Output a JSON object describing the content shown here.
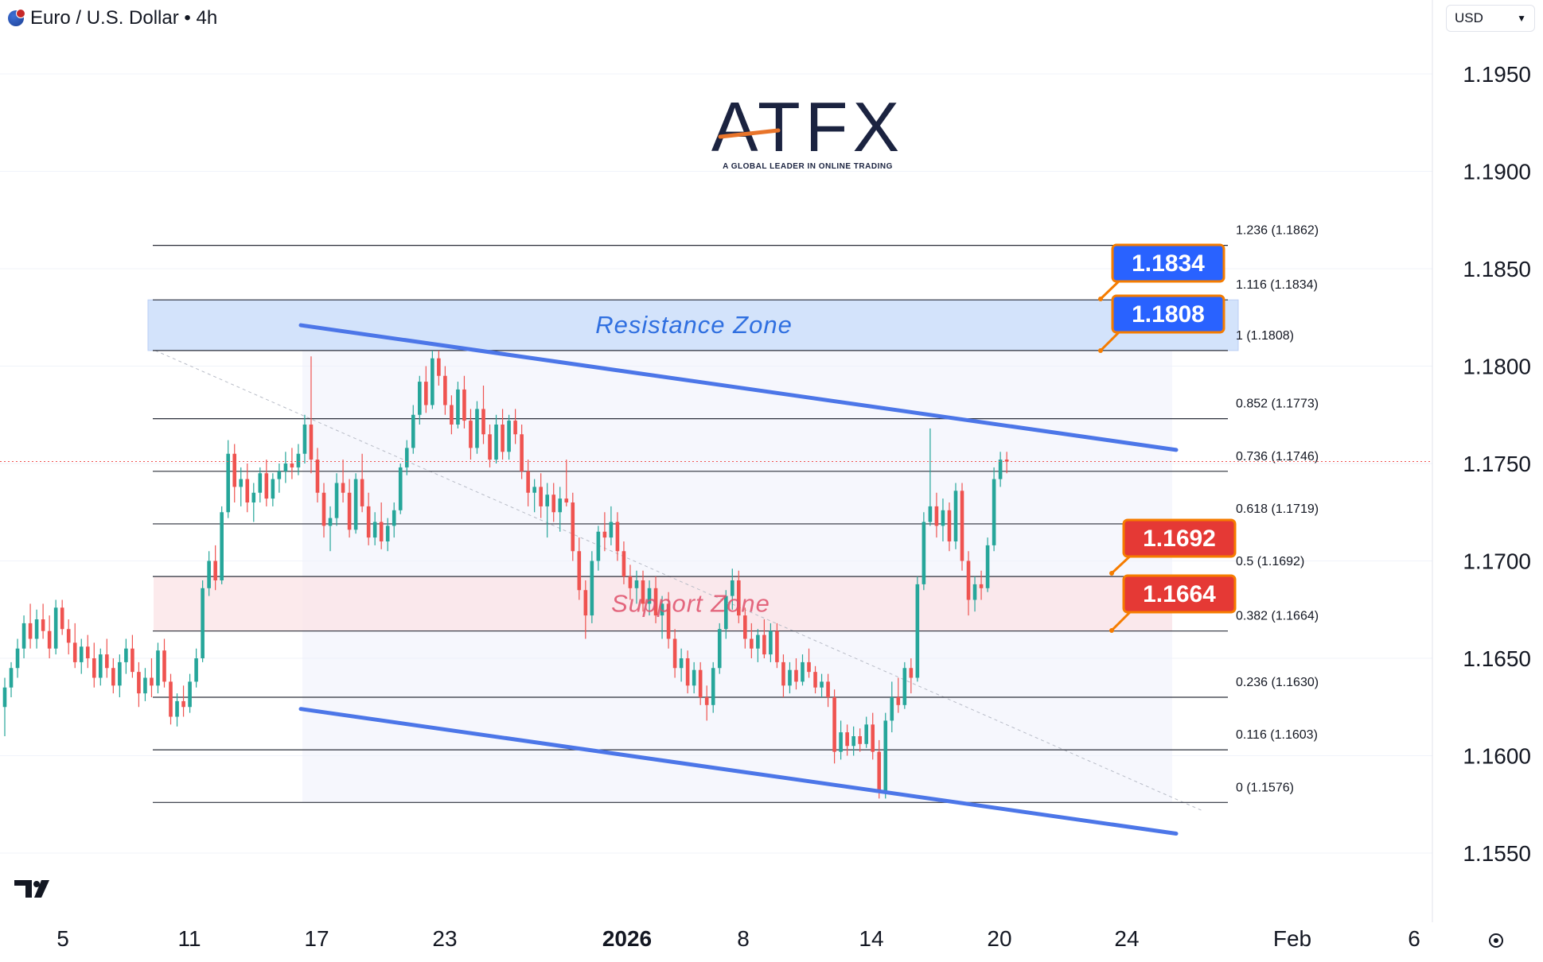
{
  "header": {
    "symbol_title": "Euro / U.S. Dollar • 4h",
    "currency": "USD"
  },
  "logo": {
    "name": "ATFX",
    "tagline": "A GLOBAL LEADER IN ONLINE TRADING"
  },
  "colors": {
    "up": "#26a69a",
    "down": "#ef5350",
    "channel": "#4c76e8",
    "resistance_zone": "#cfe0fb",
    "support_zone": "#fbe3e6",
    "badge_blue": "#2962ff",
    "badge_red": "#e53935",
    "badge_border": "#f57c00"
  },
  "chart_data": {
    "type": "candlestick",
    "title": "Euro / U.S. Dollar • 4h",
    "y_axis": {
      "ticks": [
        "1.1550",
        "1.1600",
        "1.1650",
        "1.1700",
        "1.1750",
        "1.1800",
        "1.1850",
        "1.1900",
        "1.1950"
      ],
      "range": [
        1.1535,
        1.1975
      ]
    },
    "x_axis": {
      "ticks": [
        {
          "label": "5",
          "bold": false
        },
        {
          "label": "11",
          "bold": false
        },
        {
          "label": "17",
          "bold": false
        },
        {
          "label": "23",
          "bold": false
        },
        {
          "label": "2026",
          "bold": true
        },
        {
          "label": "8",
          "bold": false
        },
        {
          "label": "14",
          "bold": false
        },
        {
          "label": "20",
          "bold": false
        },
        {
          "label": "24",
          "bold": false
        },
        {
          "label": "Feb",
          "bold": false
        },
        {
          "label": "6",
          "bold": false
        }
      ]
    },
    "fib_levels": [
      {
        "ratio": "1.236",
        "price": 1.1862,
        "label": "1.236 (1.1862)"
      },
      {
        "ratio": "1.116",
        "price": 1.1834,
        "label": "1.116 (1.1834)"
      },
      {
        "ratio": "1",
        "price": 1.1808,
        "label": "1 (1.1808)"
      },
      {
        "ratio": "0.852",
        "price": 1.1773,
        "label": "0.852 (1.1773)"
      },
      {
        "ratio": "0.736",
        "price": 1.1746,
        "label": "0.736 (1.1746)"
      },
      {
        "ratio": "0.618",
        "price": 1.1719,
        "label": "0.618 (1.1719)"
      },
      {
        "ratio": "0.5",
        "price": 1.1692,
        "label": "0.5 (1.1692)"
      },
      {
        "ratio": "0.382",
        "price": 1.1664,
        "label": "0.382 (1.1664)"
      },
      {
        "ratio": "0.236",
        "price": 1.163,
        "label": "0.236 (1.1630)"
      },
      {
        "ratio": "0.116",
        "price": 1.1603,
        "label": "0.116 (1.1603)"
      },
      {
        "ratio": "0",
        "price": 1.1576,
        "label": "0 (1.1576)"
      }
    ],
    "zones": [
      {
        "name": "Resistance Zone",
        "low": 1.1808,
        "high": 1.1834
      },
      {
        "name": "Support Zone",
        "low": 1.1664,
        "high": 1.1692
      }
    ],
    "channel": {
      "upper": [
        [
          1.1821,
          1.1757
        ]
      ],
      "lower": [
        [
          1.1624,
          1.156
        ]
      ]
    },
    "price_badges": [
      {
        "label": "1.1834",
        "price": 1.1834,
        "type": "resistance"
      },
      {
        "label": "1.1808",
        "price": 1.1808,
        "type": "resistance"
      },
      {
        "label": "1.1692",
        "price": 1.1692,
        "type": "support"
      },
      {
        "label": "1.1664",
        "price": 1.1664,
        "type": "support"
      }
    ],
    "current_price": 1.1751,
    "series": [
      {
        "ohlc": [
          [
            1.1625,
            1.164,
            1.161,
            1.1635
          ],
          [
            1.1635,
            1.1648,
            1.163,
            1.1645
          ],
          [
            1.1645,
            1.166,
            1.164,
            1.1655
          ],
          [
            1.1655,
            1.1672,
            1.165,
            1.1668
          ],
          [
            1.1668,
            1.1678,
            1.1655,
            1.166
          ],
          [
            1.166,
            1.1675,
            1.1655,
            1.167
          ],
          [
            1.167,
            1.1678,
            1.166,
            1.1664
          ],
          [
            1.1664,
            1.1672,
            1.165,
            1.1655
          ],
          [
            1.1655,
            1.168,
            1.1652,
            1.1676
          ],
          [
            1.1676,
            1.168,
            1.1662,
            1.1665
          ],
          [
            1.1665,
            1.167,
            1.1652,
            1.1658
          ],
          [
            1.1658,
            1.1668,
            1.1645,
            1.1648
          ],
          [
            1.1648,
            1.166,
            1.1642,
            1.1656
          ],
          [
            1.1656,
            1.1662,
            1.1645,
            1.165
          ],
          [
            1.165,
            1.1658,
            1.1635,
            1.164
          ],
          [
            1.164,
            1.1655,
            1.1636,
            1.1652
          ],
          [
            1.1652,
            1.166,
            1.164,
            1.1645
          ],
          [
            1.1645,
            1.165,
            1.1632,
            1.1636
          ],
          [
            1.1636,
            1.1652,
            1.163,
            1.1648
          ],
          [
            1.1648,
            1.166,
            1.1642,
            1.1655
          ],
          [
            1.1655,
            1.1662,
            1.164,
            1.1643
          ],
          [
            1.1643,
            1.1648,
            1.1625,
            1.1632
          ],
          [
            1.1632,
            1.1645,
            1.1628,
            1.164
          ],
          [
            1.164,
            1.165,
            1.163,
            1.1636
          ],
          [
            1.1636,
            1.1658,
            1.1632,
            1.1654
          ],
          [
            1.1654,
            1.166,
            1.1635,
            1.1638
          ],
          [
            1.1638,
            1.1642,
            1.1616,
            1.162
          ],
          [
            1.162,
            1.1632,
            1.1615,
            1.1628
          ],
          [
            1.1628,
            1.1636,
            1.162,
            1.1625
          ],
          [
            1.1625,
            1.1642,
            1.1622,
            1.1638
          ],
          [
            1.1638,
            1.1655,
            1.1635,
            1.165
          ],
          [
            1.165,
            1.169,
            1.1648,
            1.1686
          ],
          [
            1.1686,
            1.1705,
            1.1682,
            1.17
          ],
          [
            1.17,
            1.1708,
            1.1685,
            1.169
          ],
          [
            1.169,
            1.1728,
            1.1688,
            1.1725
          ],
          [
            1.1725,
            1.1762,
            1.1722,
            1.1755
          ],
          [
            1.1755,
            1.176,
            1.173,
            1.1738
          ],
          [
            1.1738,
            1.1748,
            1.1728,
            1.1742
          ],
          [
            1.1742,
            1.175,
            1.1725,
            1.173
          ],
          [
            1.173,
            1.174,
            1.172,
            1.1735
          ],
          [
            1.1735,
            1.1748,
            1.173,
            1.1745
          ],
          [
            1.1745,
            1.1752,
            1.1728,
            1.1732
          ],
          [
            1.1732,
            1.1745,
            1.1728,
            1.1742
          ],
          [
            1.1742,
            1.175,
            1.1735,
            1.1746
          ],
          [
            1.1746,
            1.1756,
            1.174,
            1.175
          ],
          [
            1.175,
            1.1758,
            1.1742,
            1.1748
          ],
          [
            1.1748,
            1.176,
            1.1744,
            1.1755
          ],
          [
            1.1755,
            1.1775,
            1.175,
            1.177
          ],
          [
            1.177,
            1.1805,
            1.1745,
            1.1752
          ],
          [
            1.1752,
            1.1758,
            1.173,
            1.1735
          ],
          [
            1.1735,
            1.174,
            1.1712,
            1.1718
          ],
          [
            1.1718,
            1.1728,
            1.1705,
            1.1722
          ],
          [
            1.1722,
            1.1745,
            1.1718,
            1.174
          ],
          [
            1.174,
            1.1752,
            1.173,
            1.1735
          ],
          [
            1.1735,
            1.1742,
            1.1712,
            1.1716
          ],
          [
            1.1716,
            1.1745,
            1.1714,
            1.1742
          ],
          [
            1.1742,
            1.1755,
            1.1725,
            1.1728
          ],
          [
            1.1728,
            1.1735,
            1.1708,
            1.1712
          ],
          [
            1.1712,
            1.1725,
            1.1708,
            1.172
          ],
          [
            1.172,
            1.173,
            1.1706,
            1.171
          ],
          [
            1.171,
            1.1722,
            1.1705,
            1.1718
          ],
          [
            1.1718,
            1.173,
            1.1712,
            1.1726
          ],
          [
            1.1726,
            1.175,
            1.1724,
            1.1748
          ],
          [
            1.1748,
            1.1762,
            1.1744,
            1.1758
          ],
          [
            1.1758,
            1.178,
            1.1755,
            1.1775
          ],
          [
            1.1775,
            1.1795,
            1.177,
            1.1792
          ],
          [
            1.1792,
            1.18,
            1.1776,
            1.178
          ],
          [
            1.178,
            1.1808,
            1.1778,
            1.1804
          ],
          [
            1.1804,
            1.1808,
            1.179,
            1.1795
          ],
          [
            1.1795,
            1.18,
            1.1775,
            1.178
          ],
          [
            1.178,
            1.1785,
            1.1765,
            1.177
          ],
          [
            1.177,
            1.1792,
            1.1768,
            1.1788
          ],
          [
            1.1788,
            1.1795,
            1.1768,
            1.1772
          ],
          [
            1.1772,
            1.1778,
            1.1752,
            1.1758
          ],
          [
            1.1758,
            1.1782,
            1.1755,
            1.1778
          ],
          [
            1.1778,
            1.179,
            1.176,
            1.1765
          ],
          [
            1.1765,
            1.177,
            1.1748,
            1.1752
          ],
          [
            1.1752,
            1.1775,
            1.175,
            1.177
          ],
          [
            1.177,
            1.1778,
            1.1752,
            1.1756
          ],
          [
            1.1756,
            1.1775,
            1.1752,
            1.1772
          ],
          [
            1.1772,
            1.1778,
            1.176,
            1.1765
          ],
          [
            1.1765,
            1.177,
            1.1742,
            1.1746
          ],
          [
            1.1746,
            1.1752,
            1.1728,
            1.1735
          ],
          [
            1.1735,
            1.1742,
            1.1725,
            1.1738
          ],
          [
            1.1738,
            1.1745,
            1.1722,
            1.1728
          ],
          [
            1.1728,
            1.174,
            1.1712,
            1.1734
          ],
          [
            1.1734,
            1.174,
            1.172,
            1.1725
          ],
          [
            1.1725,
            1.1738,
            1.1715,
            1.1732
          ],
          [
            1.1732,
            1.1752,
            1.1728,
            1.173
          ],
          [
            1.173,
            1.1735,
            1.17,
            1.1705
          ],
          [
            1.1705,
            1.1712,
            1.168,
            1.1685
          ],
          [
            1.1685,
            1.169,
            1.166,
            1.1672
          ],
          [
            1.1672,
            1.1705,
            1.1668,
            1.17
          ],
          [
            1.17,
            1.1718,
            1.1695,
            1.1715
          ],
          [
            1.1715,
            1.1725,
            1.1705,
            1.1712
          ],
          [
            1.1712,
            1.1728,
            1.1708,
            1.172
          ],
          [
            1.172,
            1.1725,
            1.17,
            1.1705
          ],
          [
            1.1705,
            1.171,
            1.1688,
            1.1692
          ],
          [
            1.1692,
            1.1698,
            1.168,
            1.1686
          ],
          [
            1.1686,
            1.1695,
            1.1678,
            1.169
          ],
          [
            1.169,
            1.1695,
            1.1674,
            1.1678
          ],
          [
            1.1678,
            1.169,
            1.1672,
            1.1686
          ],
          [
            1.1686,
            1.1692,
            1.1668,
            1.1672
          ],
          [
            1.1672,
            1.1682,
            1.166,
            1.1678
          ],
          [
            1.1678,
            1.1684,
            1.1655,
            1.166
          ],
          [
            1.166,
            1.1665,
            1.164,
            1.1645
          ],
          [
            1.1645,
            1.1655,
            1.1638,
            1.165
          ],
          [
            1.165,
            1.1654,
            1.1632,
            1.1636
          ],
          [
            1.1636,
            1.1648,
            1.1632,
            1.1644
          ],
          [
            1.1644,
            1.1648,
            1.1626,
            1.163
          ],
          [
            1.163,
            1.1636,
            1.1618,
            1.1626
          ],
          [
            1.1626,
            1.1648,
            1.1622,
            1.1645
          ],
          [
            1.1645,
            1.1668,
            1.1642,
            1.1665
          ],
          [
            1.1665,
            1.1685,
            1.166,
            1.1682
          ],
          [
            1.1682,
            1.1696,
            1.1675,
            1.169
          ],
          [
            1.169,
            1.1695,
            1.1668,
            1.1672
          ],
          [
            1.1672,
            1.1676,
            1.1655,
            1.166
          ],
          [
            1.166,
            1.1668,
            1.165,
            1.1655
          ],
          [
            1.1655,
            1.1665,
            1.1648,
            1.1662
          ],
          [
            1.1662,
            1.167,
            1.165,
            1.1652
          ],
          [
            1.1652,
            1.1668,
            1.1648,
            1.1664
          ],
          [
            1.1664,
            1.1668,
            1.1645,
            1.1648
          ],
          [
            1.1648,
            1.1652,
            1.163,
            1.1636
          ],
          [
            1.1636,
            1.1648,
            1.1632,
            1.1644
          ],
          [
            1.1644,
            1.165,
            1.1634,
            1.1638
          ],
          [
            1.1638,
            1.1652,
            1.1636,
            1.1648
          ],
          [
            1.1648,
            1.1655,
            1.164,
            1.1643
          ],
          [
            1.1643,
            1.1646,
            1.1632,
            1.1635
          ],
          [
            1.1635,
            1.1642,
            1.163,
            1.1638
          ],
          [
            1.1638,
            1.1642,
            1.1625,
            1.163
          ],
          [
            1.163,
            1.1634,
            1.1596,
            1.1602
          ],
          [
            1.1602,
            1.1618,
            1.1598,
            1.1612
          ],
          [
            1.1612,
            1.1616,
            1.16,
            1.1605
          ],
          [
            1.1605,
            1.1615,
            1.16,
            1.161
          ],
          [
            1.161,
            1.1614,
            1.1602,
            1.1606
          ],
          [
            1.1606,
            1.162,
            1.1604,
            1.1616
          ],
          [
            1.1616,
            1.1622,
            1.1598,
            1.1602
          ],
          [
            1.1602,
            1.1608,
            1.1578,
            1.1582
          ],
          [
            1.1582,
            1.1622,
            1.1578,
            1.1618
          ],
          [
            1.1618,
            1.1638,
            1.1612,
            1.163
          ],
          [
            1.163,
            1.164,
            1.1622,
            1.1626
          ],
          [
            1.1626,
            1.1648,
            1.1624,
            1.1645
          ],
          [
            1.1645,
            1.165,
            1.1632,
            1.164
          ],
          [
            1.164,
            1.1692,
            1.1638,
            1.1688
          ],
          [
            1.1688,
            1.1725,
            1.1685,
            1.172
          ],
          [
            1.172,
            1.1768,
            1.1718,
            1.1728
          ],
          [
            1.1728,
            1.1735,
            1.1712,
            1.1718
          ],
          [
            1.1718,
            1.1732,
            1.171,
            1.1726
          ],
          [
            1.1726,
            1.173,
            1.1705,
            1.171
          ],
          [
            1.171,
            1.174,
            1.1706,
            1.1736
          ],
          [
            1.1736,
            1.174,
            1.1695,
            1.17
          ],
          [
            1.17,
            1.1705,
            1.1672,
            1.168
          ],
          [
            1.168,
            1.1692,
            1.1674,
            1.1688
          ],
          [
            1.1688,
            1.1695,
            1.168,
            1.1686
          ],
          [
            1.1686,
            1.1712,
            1.1684,
            1.1708
          ],
          [
            1.1708,
            1.1748,
            1.1705,
            1.1742
          ],
          [
            1.1742,
            1.1756,
            1.1738,
            1.1752
          ],
          [
            1.1752,
            1.1756,
            1.1745,
            1.1751
          ]
        ]
      }
    ]
  }
}
